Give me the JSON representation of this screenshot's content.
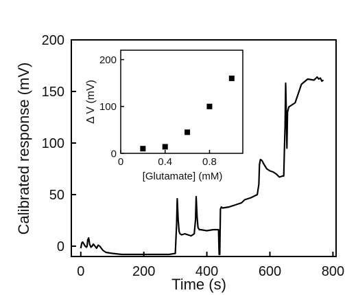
{
  "chart_data": [
    {
      "type": "line",
      "xlabel": "Time (s)",
      "ylabel": "Calibrated response (mV)",
      "xlim": [
        -30,
        810
      ],
      "ylim": [
        -10,
        200
      ],
      "xticks": [
        0,
        200,
        400,
        600,
        800
      ],
      "yticks": [
        0,
        50,
        100,
        150,
        200
      ],
      "grid": false,
      "legend": "none",
      "line_color": "#000000",
      "series": [
        {
          "x": [
            0,
            3,
            6,
            10,
            14,
            18,
            20,
            22,
            25,
            28,
            32,
            36,
            40,
            45,
            50,
            55,
            60,
            70,
            80,
            100,
            130,
            160,
            200,
            240,
            280,
            300,
            304,
            306,
            309,
            312,
            315,
            320,
            330,
            340,
            350,
            360,
            364,
            366,
            369,
            372,
            376,
            380,
            400,
            420,
            437,
            439,
            441,
            443,
            446,
            450,
            470,
            490,
            510,
            520,
            540,
            560,
            565,
            567,
            570,
            575,
            580,
            590,
            600,
            610,
            620,
            630,
            640,
            644,
            646,
            648,
            650,
            652,
            654,
            656,
            660,
            680,
            700,
            720,
            740,
            750,
            755,
            760,
            765,
            770
          ],
          "y": [
            -2,
            3,
            4,
            2,
            0,
            -1,
            0,
            6,
            8,
            2,
            -1,
            0,
            2,
            0,
            -2,
            1,
            0,
            -4,
            -6,
            -7,
            -8,
            -8,
            -8,
            -8,
            -8,
            -7,
            22,
            46,
            25,
            14,
            12,
            11,
            12,
            11,
            10,
            12,
            26,
            48,
            28,
            18,
            16,
            16,
            15,
            16,
            16,
            -8,
            -8,
            36,
            38,
            37,
            38,
            40,
            42,
            45,
            47,
            50,
            60,
            79,
            84,
            83,
            80,
            75,
            73,
            72,
            70,
            67,
            68,
            68,
            92,
            116,
            158,
            130,
            95,
            130,
            135,
            139,
            157,
            162,
            161,
            164,
            162,
            163,
            160,
            161
          ]
        }
      ]
    },
    {
      "type": "scatter",
      "xlabel": "[Glutamate] (mM)",
      "ylabel": "Δ V (mV)",
      "xlim": [
        0,
        1.1
      ],
      "ylim": [
        0,
        220
      ],
      "xticks": [
        0,
        0.4,
        0.8
      ],
      "xtick_labels": [
        "0",
        "0.4",
        "0.8"
      ],
      "yticks": [
        0,
        100,
        200
      ],
      "grid": false,
      "legend": "none",
      "marker": "square",
      "marker_color": "#000000",
      "series": [
        {
          "x": [
            0.2,
            0.4,
            0.6,
            0.8,
            1.0
          ],
          "y": [
            10,
            14,
            45,
            100,
            160
          ]
        }
      ]
    }
  ]
}
